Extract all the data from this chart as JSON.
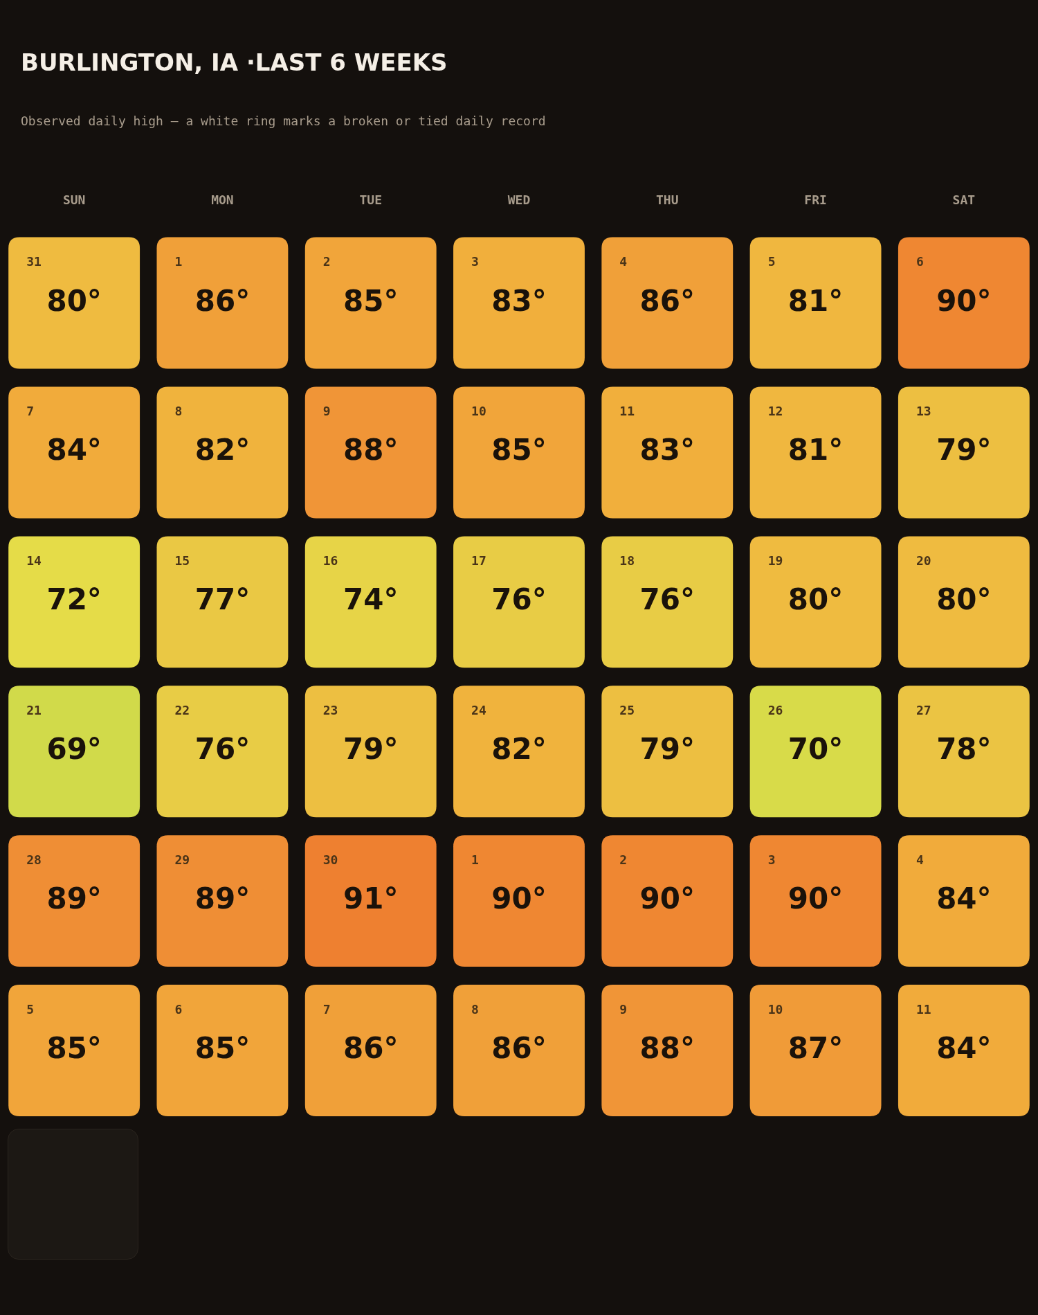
{
  "chart_data": {
    "type": "heatmap",
    "title": "BURLINGTON, IA ·LAST 6 WEEKS",
    "subtitle": "Observed daily high — a white ring marks a broken or tied daily record",
    "categories": [
      "SUN",
      "MON",
      "TUE",
      "WED",
      "THU",
      "FRI",
      "SAT"
    ],
    "y_categories": [
      null,
      null,
      null,
      null,
      null,
      null
    ],
    "cells": [
      [
        80,
        86,
        85,
        83,
        86,
        81,
        90
      ],
      [
        84,
        82,
        88,
        85,
        83,
        81,
        79
      ],
      [
        72,
        77,
        74,
        76,
        76,
        80,
        80
      ],
      [
        69,
        76,
        79,
        82,
        79,
        70,
        78
      ],
      [
        89,
        89,
        91,
        90,
        90,
        90,
        84
      ],
      [
        85,
        85,
        86,
        86,
        88,
        87,
        84
      ]
    ],
    "cell_labels": [
      [
        "80°",
        "86°",
        "85°",
        "83°",
        "86°",
        "81°",
        "90°"
      ],
      [
        "84°",
        "82°",
        "88°",
        "85°",
        "83°",
        "81°",
        "79°"
      ],
      [
        "72°",
        "77°",
        "74°",
        "76°",
        "76°",
        "80°",
        "80°"
      ],
      [
        "69°",
        "76°",
        "79°",
        "82°",
        "79°",
        "70°",
        "78°"
      ],
      [
        "89°",
        "89°",
        "91°",
        "90°",
        "90°",
        "90°",
        "84°"
      ],
      [
        "85°",
        "85°",
        "86°",
        "86°",
        "88°",
        "87°",
        "84°"
      ]
    ],
    "annotations": [
      "31",
      "1",
      "2",
      "3",
      "4",
      "5",
      "6",
      "7",
      "8",
      "9",
      "10",
      "11",
      "12",
      "13",
      "14",
      "15",
      "16",
      "17",
      "18",
      "19",
      "20",
      "21",
      "22",
      "23",
      "24",
      "25",
      "26",
      "27",
      "28",
      "29",
      "30",
      "1",
      "2",
      "3",
      "4",
      "5",
      "6",
      "7",
      "8",
      "9",
      "10",
      "11"
    ]
  }
}
